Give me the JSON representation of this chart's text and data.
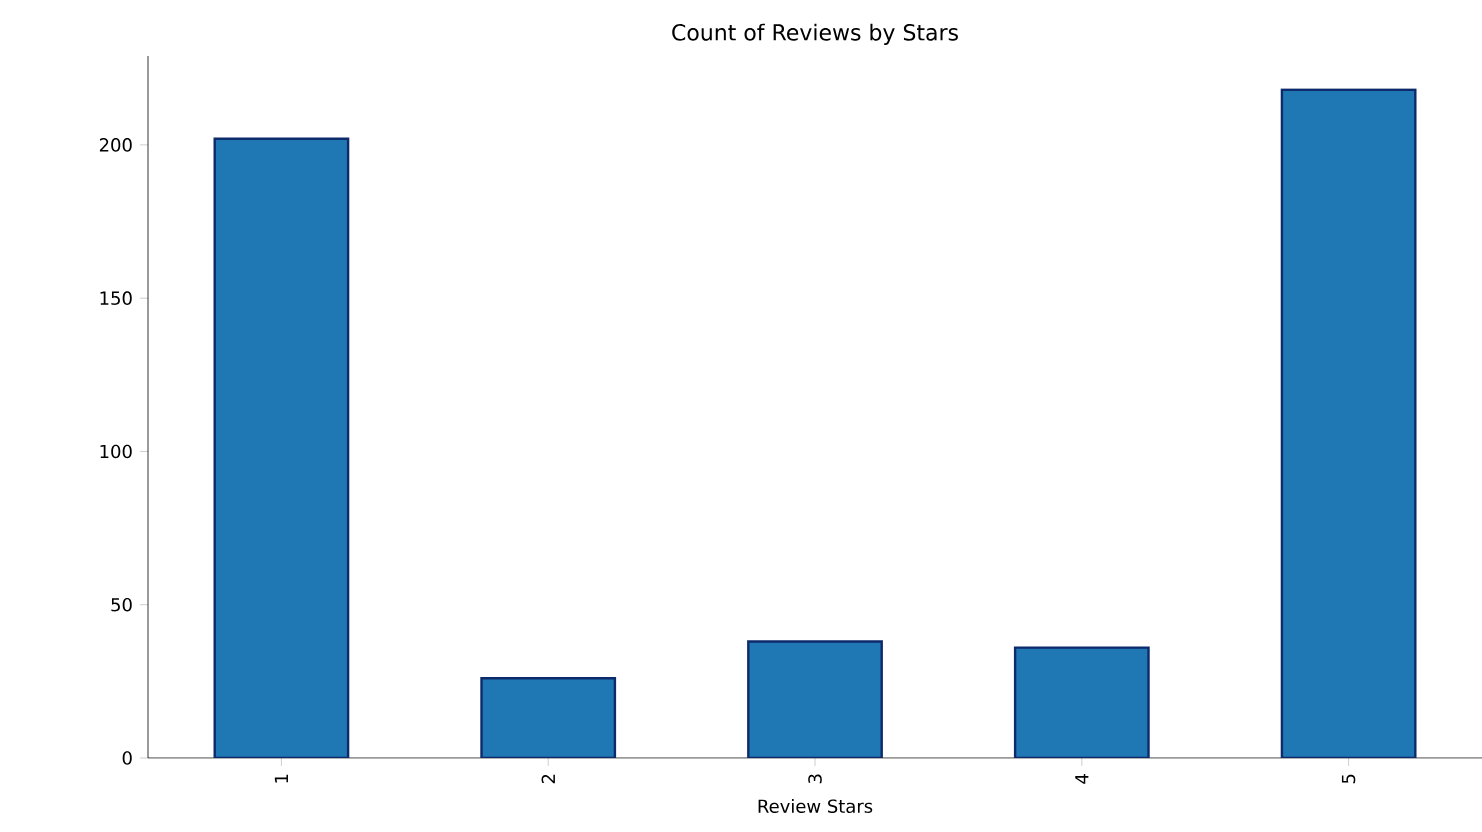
{
  "chart_data": {
    "type": "bar",
    "title": "Count of Reviews by Stars",
    "xlabel": "Review Stars",
    "categories": [
      "1",
      "2",
      "3",
      "4",
      "5"
    ],
    "values": [
      202,
      26,
      38,
      36,
      218
    ],
    "color": "#1f77b4",
    "ylim": [
      0,
      229
    ],
    "yticks": [
      0,
      50,
      100,
      150,
      200
    ]
  }
}
